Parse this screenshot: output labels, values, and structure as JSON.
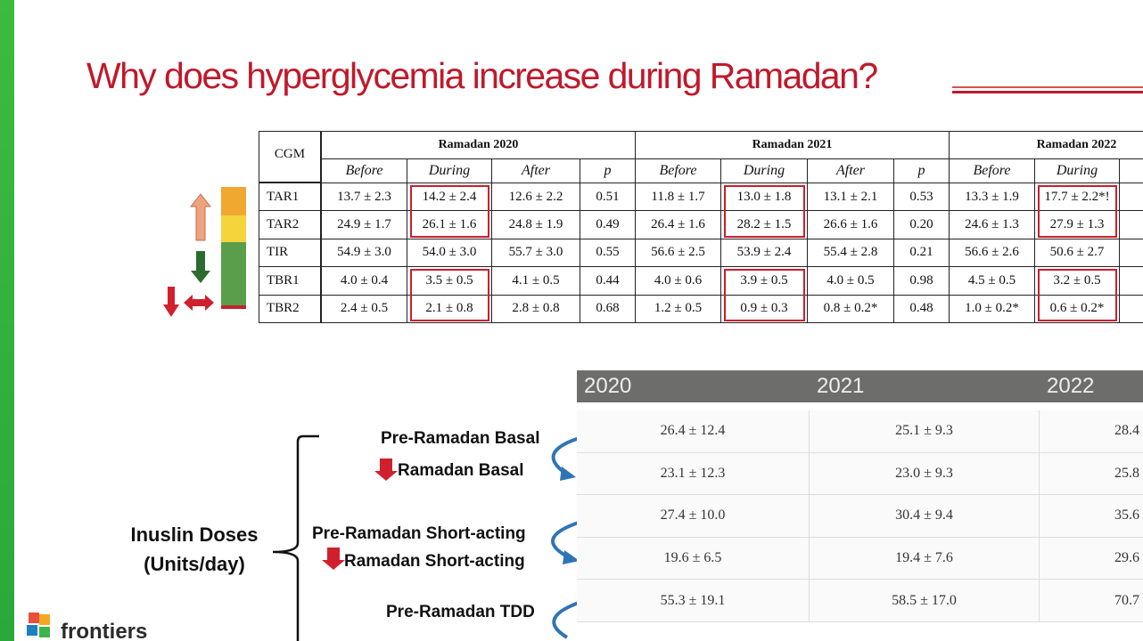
{
  "title": "Why does hyperglycemia increase during Ramadan?",
  "cgm_table": {
    "corner": "CGM",
    "groups": [
      "Ramadan 2020",
      "Ramadan 2021",
      "Ramadan 2022"
    ],
    "columns": [
      "Before",
      "During",
      "After",
      "p",
      "Before",
      "During",
      "After",
      "p",
      "Before",
      "During"
    ],
    "rows": [
      {
        "label": "TAR1",
        "cells": [
          "13.7 ± 2.3",
          "14.2 ± 2.4",
          "12.6 ± 2.2",
          "0.51",
          "11.8 ± 1.7",
          "13.0 ± 1.8",
          "13.1 ± 2.1",
          "0.53",
          "13.3 ± 1.9",
          "17.7 ± 2.2*!"
        ]
      },
      {
        "label": "TAR2",
        "cells": [
          "24.9 ± 1.7",
          "26.1 ± 1.6",
          "24.8 ± 1.9",
          "0.49",
          "26.4 ± 1.6",
          "28.2 ± 1.5",
          "26.6 ± 1.6",
          "0.20",
          "24.6 ± 1.3",
          "27.9 ± 1.3"
        ]
      },
      {
        "label": "TIR",
        "cells": [
          "54.9 ± 3.0",
          "54.0 ± 3.0",
          "55.7 ± 3.0",
          "0.55",
          "56.6 ± 2.5",
          "53.9 ± 2.4",
          "55.4 ± 2.8",
          "0.21",
          "56.6 ± 2.6",
          "50.6 ± 2.7"
        ]
      },
      {
        "label": "TBR1",
        "cells": [
          "4.0 ± 0.4",
          "3.5 ± 0.5",
          "4.1 ± 0.5",
          "0.44",
          "4.0 ± 0.6",
          "3.9 ± 0.5",
          "4.0 ± 0.5",
          "0.98",
          "4.5 ± 0.5",
          "3.2 ± 0.5"
        ]
      },
      {
        "label": "TBR2",
        "cells": [
          "2.4 ± 0.5",
          "2.1 ± 0.8",
          "2.8 ± 0.8",
          "0.68",
          "1.2 ± 0.5",
          "0.9 ± 0.3",
          "0.8 ± 0.2*",
          "0.48",
          "1.0 ± 0.2*",
          "0.6 ± 0.2*"
        ]
      }
    ]
  },
  "dose_table": {
    "columns": [
      "2020",
      "2021",
      "2022"
    ],
    "rows": [
      [
        "26.4 ± 12.4",
        "25.1 ± 9.3",
        "28.4"
      ],
      [
        "23.1 ± 12.3",
        "23.0 ± 9.3",
        "25.8"
      ],
      [
        "27.4 ± 10.0",
        "30.4 ± 9.4",
        "35.6"
      ],
      [
        "19.6 ± 6.5",
        "19.4 ± 7.6",
        "29.6"
      ],
      [
        "55.3 ± 19.1",
        "58.5 ± 17.0",
        "70.7"
      ]
    ]
  },
  "dose_labels": [
    "Pre-Ramadan Basal",
    "Ramadan Basal",
    "Pre-Ramadan Short-acting",
    "Ramadan Short-acting",
    "Pre-Ramadan TDD"
  ],
  "bracket_label": [
    "Inuslin Doses",
    "(Units/day)"
  ],
  "logo": "frontiers"
}
